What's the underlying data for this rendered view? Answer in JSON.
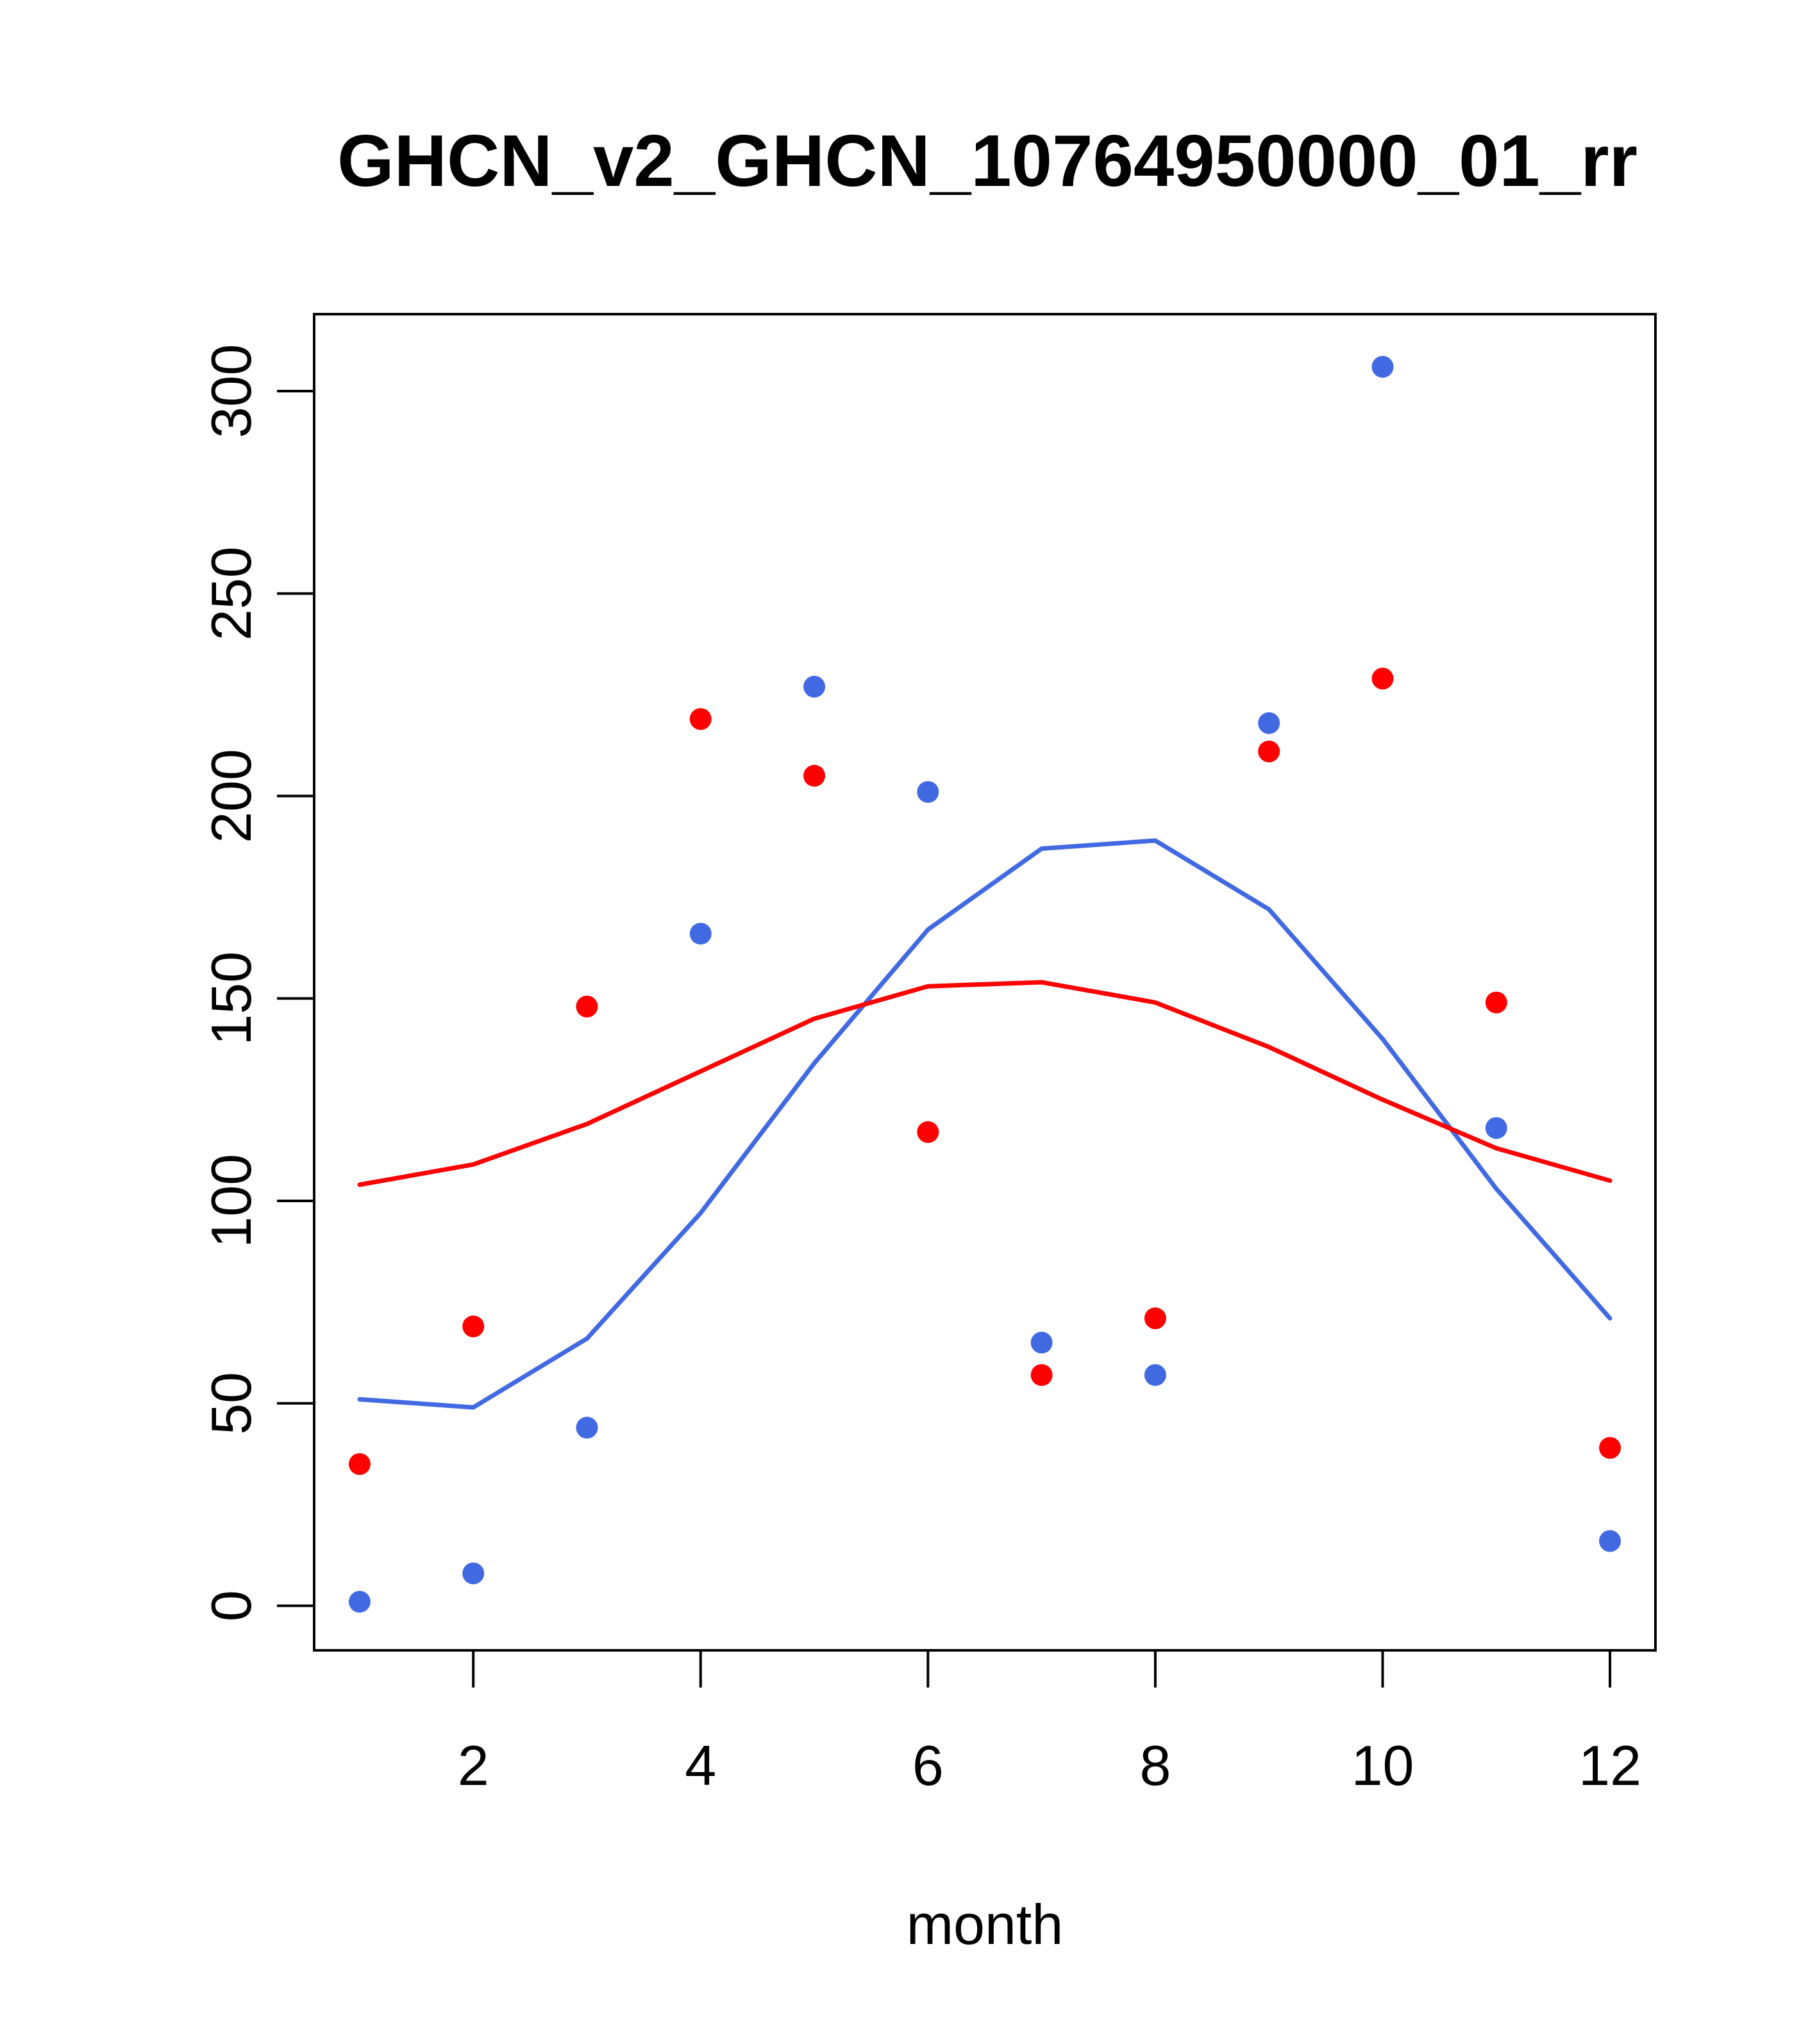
{
  "chart_data": {
    "type": "scatter",
    "title": "GHCN_v2_GHCN_10764950000_01_rr",
    "xlabel": "month",
    "ylabel": "",
    "xlim": [
      0.6,
      12.4
    ],
    "ylim": [
      -11,
      319
    ],
    "x_ticks": [
      2,
      4,
      6,
      8,
      10,
      12
    ],
    "y_ticks": [
      0,
      50,
      100,
      150,
      200,
      250,
      300
    ],
    "grid": false,
    "x": [
      1,
      2,
      3,
      4,
      5,
      6,
      7,
      8,
      9,
      10,
      11,
      12
    ],
    "series": [
      {
        "kind": "points",
        "color": "#4169E1",
        "values": [
          1,
          8,
          44,
          166,
          227,
          201,
          65,
          57,
          218,
          306,
          118,
          16
        ]
      },
      {
        "kind": "points",
        "color": "#FF0000",
        "values": [
          35,
          69,
          148,
          219,
          205,
          117,
          57,
          71,
          211,
          229,
          149,
          39
        ]
      },
      {
        "kind": "line",
        "color": "#4169E1",
        "values": [
          51,
          49,
          66,
          97,
          134,
          167,
          187,
          189,
          172,
          140,
          103,
          71
        ]
      },
      {
        "kind": "line",
        "color": "#FF0000",
        "values": [
          104,
          109,
          119,
          132,
          145,
          153,
          154,
          149,
          138,
          125,
          113,
          105
        ]
      }
    ]
  }
}
